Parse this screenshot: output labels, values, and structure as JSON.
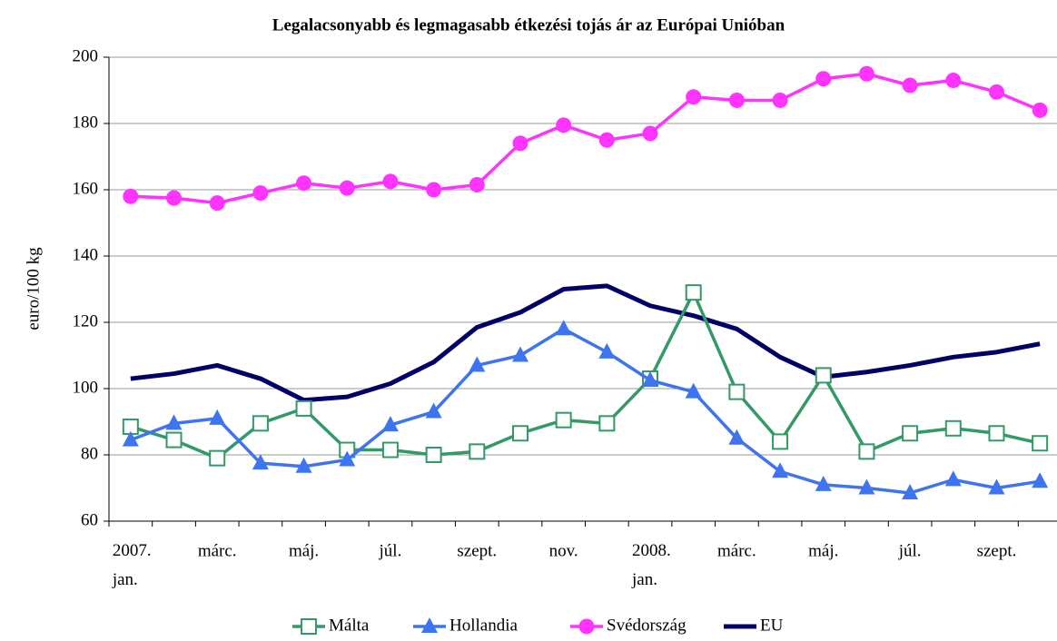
{
  "chart_data": {
    "type": "line",
    "title": "Legalacsonyabb és legmagasabb étkezési tojás ár az Európai Unióban",
    "y_label": "euro/100 kg",
    "categories": [
      "2007. jan.",
      null,
      "márc.",
      null,
      "máj.",
      null,
      "júl.",
      null,
      "szept.",
      null,
      "nov.",
      null,
      "2008. jan.",
      null,
      "márc.",
      null,
      "máj.",
      null,
      "júl.",
      null,
      "szept.",
      null
    ],
    "ylim": [
      60,
      200
    ],
    "yticks": [
      60,
      80,
      100,
      120,
      140,
      160,
      180,
      200
    ],
    "grid": true,
    "legend": "bottom",
    "series": [
      {
        "name": "Málta",
        "color": "#339966",
        "marker": "square",
        "values": [
          88.5,
          84.5,
          79,
          89.5,
          94,
          81.5,
          81.5,
          80,
          81,
          86.5,
          90.5,
          89.5,
          103,
          129,
          99,
          84,
          104,
          81,
          86.5,
          88,
          86.5,
          83.5
        ]
      },
      {
        "name": "Hollandia",
        "color": "#3f74f0",
        "marker": "triangle",
        "values": [
          84.5,
          89.5,
          91,
          77.5,
          76.5,
          78.5,
          89,
          93,
          107,
          110,
          118,
          111,
          102.5,
          99,
          85,
          75,
          71,
          70,
          68.5,
          72.5,
          70,
          72
        ]
      },
      {
        "name": "Svédország",
        "color": "#ff33ff",
        "marker": "circle",
        "values": [
          158,
          157.5,
          156,
          159,
          162,
          160.5,
          162.5,
          160,
          161.5,
          174,
          179.5,
          175,
          177,
          188,
          187,
          187,
          193.5,
          195,
          191.5,
          193,
          189.5,
          184
        ]
      },
      {
        "name": "EU",
        "color": "#000066",
        "marker": "none",
        "values": [
          103,
          104.5,
          107,
          103,
          96.5,
          97.5,
          101.5,
          108,
          118.5,
          123,
          130,
          131,
          125,
          122,
          118,
          109.5,
          103.5,
          105,
          107,
          109.5,
          111,
          113.5
        ]
      }
    ]
  }
}
